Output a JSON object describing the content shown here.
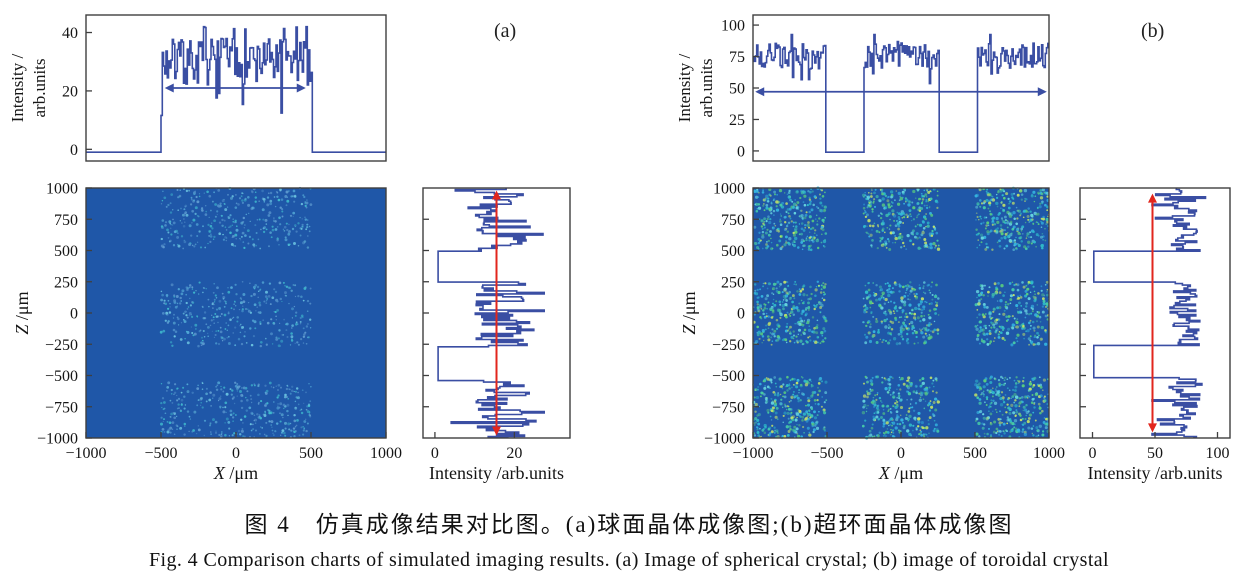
{
  "caption": {
    "zh": "图 4　仿真成像结果对比图。(a)球面晶体成像图;(b)超环面晶体成像图",
    "en": "Fig. 4  Comparison charts of simulated imaging results. (a) Image of spherical crystal; (b) image of toroidal crystal"
  },
  "colors": {
    "trace_blue": "#3a4ea3",
    "marker_red": "#e2261d",
    "heatmap_bg": "#1f57a8",
    "axis": "#3f3f3f",
    "text": "#151515",
    "speckle_dim": [
      "#4e8ec9",
      "#53a8d6",
      "#3fb9cd",
      "#6bc3e0",
      "#5f9bd0"
    ],
    "speckle_bright": [
      "#2fbccb",
      "#45c9a8",
      "#66d3df",
      "#35b5e0",
      "#59cd7f",
      "#bfe06a"
    ]
  },
  "chart_data": {
    "type": "figure-panels",
    "panels": [
      {
        "label": "(a)",
        "description": "Image of spherical crystal",
        "top_profile": {
          "type": "line",
          "ylabel_lines": [
            "Intensity /",
            "arb.units"
          ],
          "xlim": [
            -1000,
            1000
          ],
          "ylim": [
            -4,
            46
          ],
          "yticks": [
            0,
            20,
            40
          ],
          "baseline": -1,
          "signal_bands_x": [
            [
              -500,
              500
            ]
          ],
          "noise_mean": 30,
          "noise_amp": 8,
          "arrow": {
            "y": 21,
            "x1": -475,
            "x2": 465,
            "style": "double-headed"
          }
        },
        "heatmap": {
          "type": "heatmap",
          "xlabel_var": "X",
          "xlabel_unit": " /μm",
          "ylabel_var": "Z",
          "ylabel_unit": " /μm",
          "xlim": [
            -1000,
            1000
          ],
          "zlim": [
            -1000,
            1000
          ],
          "xticks": [
            -1000,
            -500,
            0,
            500,
            1000
          ],
          "zticks": [
            1000,
            750,
            500,
            250,
            0,
            -250,
            -500,
            -750,
            -1000
          ],
          "speckle_x_bands": [
            [
              -500,
              500
            ]
          ],
          "speckle_z_bands": [
            [
              515,
              1000
            ],
            [
              -265,
              250
            ],
            [
              -1000,
              -555
            ]
          ],
          "speckle_palette_key": "speckle_dim",
          "dots_per_region": 360,
          "dot_radius": [
            0.6,
            1.5
          ]
        },
        "side_profile": {
          "type": "line",
          "xlabel": "Intensity /arb.units",
          "xlim": [
            -3,
            34
          ],
          "zlim": [
            -1000,
            1000
          ],
          "xticks": [
            0,
            20
          ],
          "ztick_step": 250,
          "baseline": 0.8,
          "signal_bands_z": [
            [
              505,
              1000
            ],
            [
              -270,
              250
            ],
            [
              -1000,
              -540
            ]
          ],
          "noise_mean": 17,
          "noise_amp": 7,
          "marker_line": {
            "x": 15.5,
            "z1": -980,
            "z2": 980,
            "style": "double-headed"
          }
        }
      },
      {
        "label": "(b)",
        "description": "Image of toroidal crystal",
        "top_profile": {
          "type": "line",
          "ylabel_lines": [
            "Intensity /",
            "arb.units"
          ],
          "xlim": [
            -1000,
            1000
          ],
          "ylim": [
            -8,
            108
          ],
          "yticks": [
            0,
            25,
            50,
            75,
            100
          ],
          "baseline": -1,
          "signal_bands_x": [
            [
              -1000,
              -510
            ],
            [
              -255,
              255
            ],
            [
              510,
              1000
            ]
          ],
          "noise_mean": 76,
          "noise_amp": 11,
          "arrow": {
            "y": 47,
            "x1": -985,
            "x2": 985,
            "style": "double-headed"
          }
        },
        "heatmap": {
          "type": "heatmap",
          "xlabel_var": "X",
          "xlabel_unit": " /μm",
          "ylabel_var": "Z",
          "ylabel_unit": " /μm",
          "xlim": [
            -1000,
            1000
          ],
          "zlim": [
            -1000,
            1000
          ],
          "xticks": [
            -1000,
            -500,
            0,
            500,
            1000
          ],
          "zticks": [
            1000,
            750,
            500,
            250,
            0,
            -250,
            -500,
            -750,
            -1000
          ],
          "speckle_x_bands": [
            [
              -1000,
              -505
            ],
            [
              -255,
              255
            ],
            [
              505,
              1000
            ]
          ],
          "speckle_z_bands": [
            [
              505,
              1000
            ],
            [
              -255,
              250
            ],
            [
              -1000,
              -510
            ]
          ],
          "speckle_palette_key": "speckle_bright",
          "dots_per_region": 300,
          "dot_radius": [
            0.7,
            1.7
          ]
        },
        "side_profile": {
          "type": "line",
          "xlabel": "Intensity /arb.units",
          "xlim": [
            -10,
            110
          ],
          "zlim": [
            -1000,
            1000
          ],
          "xticks": [
            0,
            50,
            100
          ],
          "ztick_step": 250,
          "baseline": 1,
          "signal_bands_z": [
            [
              505,
              1000
            ],
            [
              -255,
              250
            ],
            [
              -1000,
              -510
            ]
          ],
          "noise_mean": 74,
          "noise_amp": 12,
          "marker_line": {
            "x": 48,
            "z1": -955,
            "z2": 955,
            "style": "double-headed"
          }
        }
      }
    ]
  }
}
